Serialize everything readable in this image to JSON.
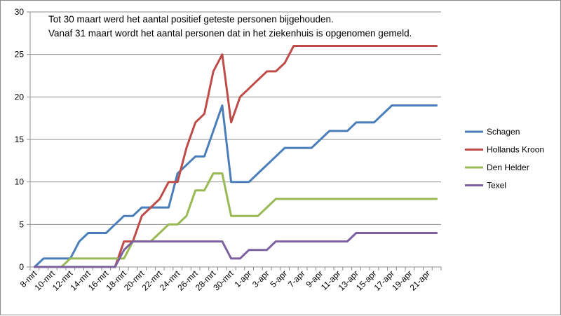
{
  "chart_data": {
    "type": "line",
    "annotation": [
      "Tot 30 maart werd het aantal positief geteste personen bijgehouden.",
      "Vanaf 31 maart wordt het aantal personen dat in het ziekenhuis is opgenomen gemeld."
    ],
    "x": [
      "8-mrt",
      "9-mrt",
      "10-mrt",
      "11-mrt",
      "12-mrt",
      "13-mrt",
      "14-mrt",
      "15-mrt",
      "16-mrt",
      "17-mrt",
      "18-mrt",
      "19-mrt",
      "20-mrt",
      "21-mrt",
      "22-mrt",
      "23-mrt",
      "24-mrt",
      "25-mrt",
      "26-mrt",
      "27-mrt",
      "28-mrt",
      "29-mrt",
      "30-mrt",
      "31-mrt",
      "1-apr",
      "2-apr",
      "3-apr",
      "4-apr",
      "5-apr",
      "6-apr",
      "7-apr",
      "8-apr",
      "9-apr",
      "10-apr",
      "11-apr",
      "12-apr",
      "13-apr",
      "14-apr",
      "15-apr",
      "16-apr",
      "17-apr",
      "18-apr",
      "19-apr",
      "20-apr",
      "21-apr",
      "22-apr"
    ],
    "tick_labels": [
      "8-mrt",
      "10-mrt",
      "12-mrt",
      "14-mrt",
      "16-mrt",
      "18-mrt",
      "20-mrt",
      "22-mrt",
      "24-mrt",
      "26-mrt",
      "28-mrt",
      "30-mrt",
      "1-apr",
      "3-apr",
      "5-apr",
      "7-apr",
      "9-apr",
      "11-apr",
      "13-apr",
      "15-apr",
      "17-apr",
      "19-apr",
      "21-apr"
    ],
    "ylim": [
      0,
      30
    ],
    "yticks": [
      0,
      5,
      10,
      15,
      20,
      25,
      30
    ],
    "grid": true,
    "legend_position": "right",
    "series": [
      {
        "name": "Schagen",
        "color": "#4a7ebb",
        "values": [
          0,
          1,
          1,
          1,
          1,
          3,
          4,
          4,
          4,
          5,
          6,
          6,
          7,
          7,
          7,
          7,
          11,
          12,
          13,
          13,
          16,
          19,
          10,
          10,
          10,
          11,
          12,
          13,
          14,
          14,
          14,
          14,
          15,
          16,
          16,
          16,
          17,
          17,
          17,
          18,
          19,
          19,
          19,
          19,
          19,
          19
        ]
      },
      {
        "name": "Hollands Kroon",
        "color": "#be4b48",
        "values": [
          0,
          0,
          0,
          0,
          0,
          0,
          0,
          0,
          0,
          0,
          3,
          3,
          6,
          7,
          8,
          10,
          10,
          14,
          17,
          18,
          23,
          25,
          17,
          20,
          21,
          22,
          23,
          23,
          24,
          26,
          26,
          26,
          26,
          26,
          26,
          26,
          26,
          26,
          26,
          26,
          26,
          26,
          26,
          26,
          26,
          26
        ]
      },
      {
        "name": "Den Helder",
        "color": "#98b954",
        "values": [
          0,
          0,
          0,
          0,
          1,
          1,
          1,
          1,
          1,
          1,
          1,
          3,
          3,
          3,
          4,
          5,
          5,
          6,
          9,
          9,
          11,
          11,
          6,
          6,
          6,
          6,
          7,
          8,
          8,
          8,
          8,
          8,
          8,
          8,
          8,
          8,
          8,
          8,
          8,
          8,
          8,
          8,
          8,
          8,
          8,
          8
        ]
      },
      {
        "name": "Texel",
        "color": "#7d60a0",
        "values": [
          0,
          0,
          0,
          0,
          0,
          0,
          0,
          0,
          0,
          0,
          2,
          3,
          3,
          3,
          3,
          3,
          3,
          3,
          3,
          3,
          3,
          3,
          1,
          1,
          2,
          2,
          2,
          3,
          3,
          3,
          3,
          3,
          3,
          3,
          3,
          3,
          4,
          4,
          4,
          4,
          4,
          4,
          4,
          4,
          4,
          4
        ]
      }
    ]
  }
}
